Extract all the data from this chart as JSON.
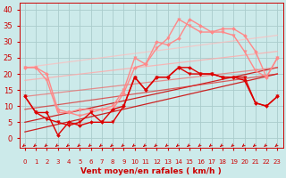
{
  "background_color": "#cceaea",
  "grid_color": "#aacccc",
  "x_label": "Vent moyen/en rafales ( km/h )",
  "x_ticks": [
    0,
    1,
    2,
    3,
    4,
    5,
    6,
    7,
    8,
    9,
    10,
    11,
    12,
    13,
    14,
    15,
    16,
    17,
    18,
    19,
    20,
    21,
    22,
    23
  ],
  "y_ticks": [
    0,
    5,
    10,
    15,
    20,
    25,
    30,
    35,
    40
  ],
  "ylim": [
    -3,
    42
  ],
  "xlim": [
    -0.5,
    23.5
  ],
  "series": [
    {
      "x": [
        0,
        1,
        2,
        3,
        4,
        5,
        6,
        7,
        8,
        9,
        10,
        11,
        12,
        13,
        14,
        15,
        16,
        17,
        18,
        19,
        20,
        21,
        22,
        23
      ],
      "y": [
        13,
        8,
        8,
        1,
        5,
        4,
        5,
        5,
        9,
        10,
        19,
        15,
        19,
        19,
        22,
        22,
        20,
        20,
        19,
        19,
        18,
        11,
        10,
        13
      ],
      "color": "#dd0000",
      "lw": 1.0,
      "marker": "D",
      "ms": 2.0,
      "alpha": 1.0,
      "zorder": 5
    },
    {
      "x": [
        0,
        1,
        2,
        3,
        4,
        5,
        6,
        7,
        8,
        9,
        10,
        11,
        12,
        13,
        14,
        15,
        16,
        17,
        18,
        19,
        20,
        21,
        22,
        23
      ],
      "y": [
        13,
        8,
        6,
        5,
        4,
        5,
        8,
        5,
        5,
        10,
        19,
        15,
        19,
        19,
        22,
        20,
        20,
        20,
        19,
        19,
        19,
        11,
        10,
        13
      ],
      "color": "#dd0000",
      "lw": 1.0,
      "marker": "v",
      "ms": 2.5,
      "alpha": 1.0,
      "zorder": 5
    },
    {
      "x": [
        0,
        1,
        2,
        3,
        4,
        5,
        6,
        7,
        8,
        9,
        10,
        11,
        12,
        13,
        14,
        15,
        16,
        17,
        18,
        19,
        20,
        21,
        22,
        23
      ],
      "y": [
        22,
        22,
        20,
        9,
        8,
        9,
        9,
        9,
        9,
        14,
        22,
        23,
        30,
        29,
        31,
        37,
        35,
        33,
        34,
        34,
        32,
        27,
        19,
        25
      ],
      "color": "#ff8888",
      "lw": 1.0,
      "marker": "D",
      "ms": 2.0,
      "alpha": 1.0,
      "zorder": 4
    },
    {
      "x": [
        0,
        1,
        2,
        3,
        4,
        5,
        6,
        7,
        8,
        9,
        10,
        11,
        12,
        13,
        14,
        15,
        16,
        17,
        18,
        19,
        20,
        21,
        22,
        23
      ],
      "y": [
        22,
        22,
        18,
        8,
        8,
        7,
        8,
        9,
        10,
        15,
        25,
        23,
        28,
        31,
        37,
        35,
        33,
        33,
        33,
        32,
        27,
        21,
        19,
        25
      ],
      "color": "#ff8888",
      "lw": 1.0,
      "marker": "v",
      "ms": 2.5,
      "alpha": 1.0,
      "zorder": 4
    },
    {
      "x": [
        0,
        23
      ],
      "y": [
        2,
        20
      ],
      "color": "#cc0000",
      "lw": 0.9,
      "marker": null,
      "ms": 0,
      "alpha": 0.85,
      "zorder": 3
    },
    {
      "x": [
        0,
        23
      ],
      "y": [
        5,
        22
      ],
      "color": "#cc0000",
      "lw": 0.9,
      "marker": null,
      "ms": 0,
      "alpha": 0.85,
      "zorder": 3
    },
    {
      "x": [
        0,
        23
      ],
      "y": [
        9,
        20
      ],
      "color": "#dd2222",
      "lw": 0.9,
      "marker": null,
      "ms": 0,
      "alpha": 0.7,
      "zorder": 3
    },
    {
      "x": [
        0,
        23
      ],
      "y": [
        13,
        22
      ],
      "color": "#ee6666",
      "lw": 0.9,
      "marker": null,
      "ms": 0,
      "alpha": 0.7,
      "zorder": 3
    },
    {
      "x": [
        0,
        23
      ],
      "y": [
        18,
        27
      ],
      "color": "#ffaaaa",
      "lw": 0.9,
      "marker": null,
      "ms": 0,
      "alpha": 0.8,
      "zorder": 2
    },
    {
      "x": [
        0,
        23
      ],
      "y": [
        22,
        32
      ],
      "color": "#ffbbbb",
      "lw": 0.9,
      "marker": null,
      "ms": 0,
      "alpha": 0.7,
      "zorder": 2
    }
  ],
  "arrows": {
    "color": "#cc0000",
    "y_data": -2.0,
    "lw": 0.7
  },
  "axis_color": "#cc0000",
  "tick_color": "#cc0000",
  "label_color": "#cc0000",
  "xlabel_fontsize": 6.5,
  "xlabel_fontweight": "bold",
  "ytick_fontsize": 6,
  "xtick_fontsize": 5
}
